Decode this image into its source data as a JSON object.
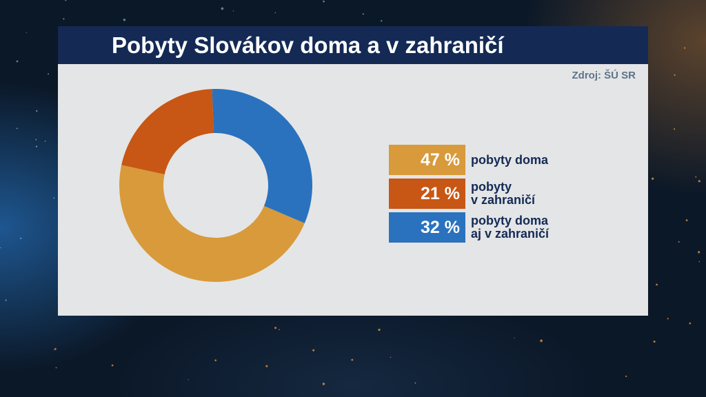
{
  "title": "Pobyty Slovákov doma a v zahraničí",
  "source": "Zdroj: ŠÚ SR",
  "colors": {
    "header_bg": "#142a55",
    "card_bg": "#e4e5e6",
    "label_text": "#142a55"
  },
  "chart_data": {
    "type": "pie",
    "donut": true,
    "unit": "%",
    "slices": [
      {
        "label": "pobyty doma",
        "value": 47,
        "value_text": "47 %",
        "color": "#d89a3a"
      },
      {
        "label": "pobyty\nv zahraničí",
        "value": 21,
        "value_text": "21 %",
        "color": "#c85614"
      },
      {
        "label": "pobyty doma\naj v zahraničí",
        "value": 32,
        "value_text": "32 %",
        "color": "#2a72be"
      }
    ],
    "legend_position": "right"
  }
}
